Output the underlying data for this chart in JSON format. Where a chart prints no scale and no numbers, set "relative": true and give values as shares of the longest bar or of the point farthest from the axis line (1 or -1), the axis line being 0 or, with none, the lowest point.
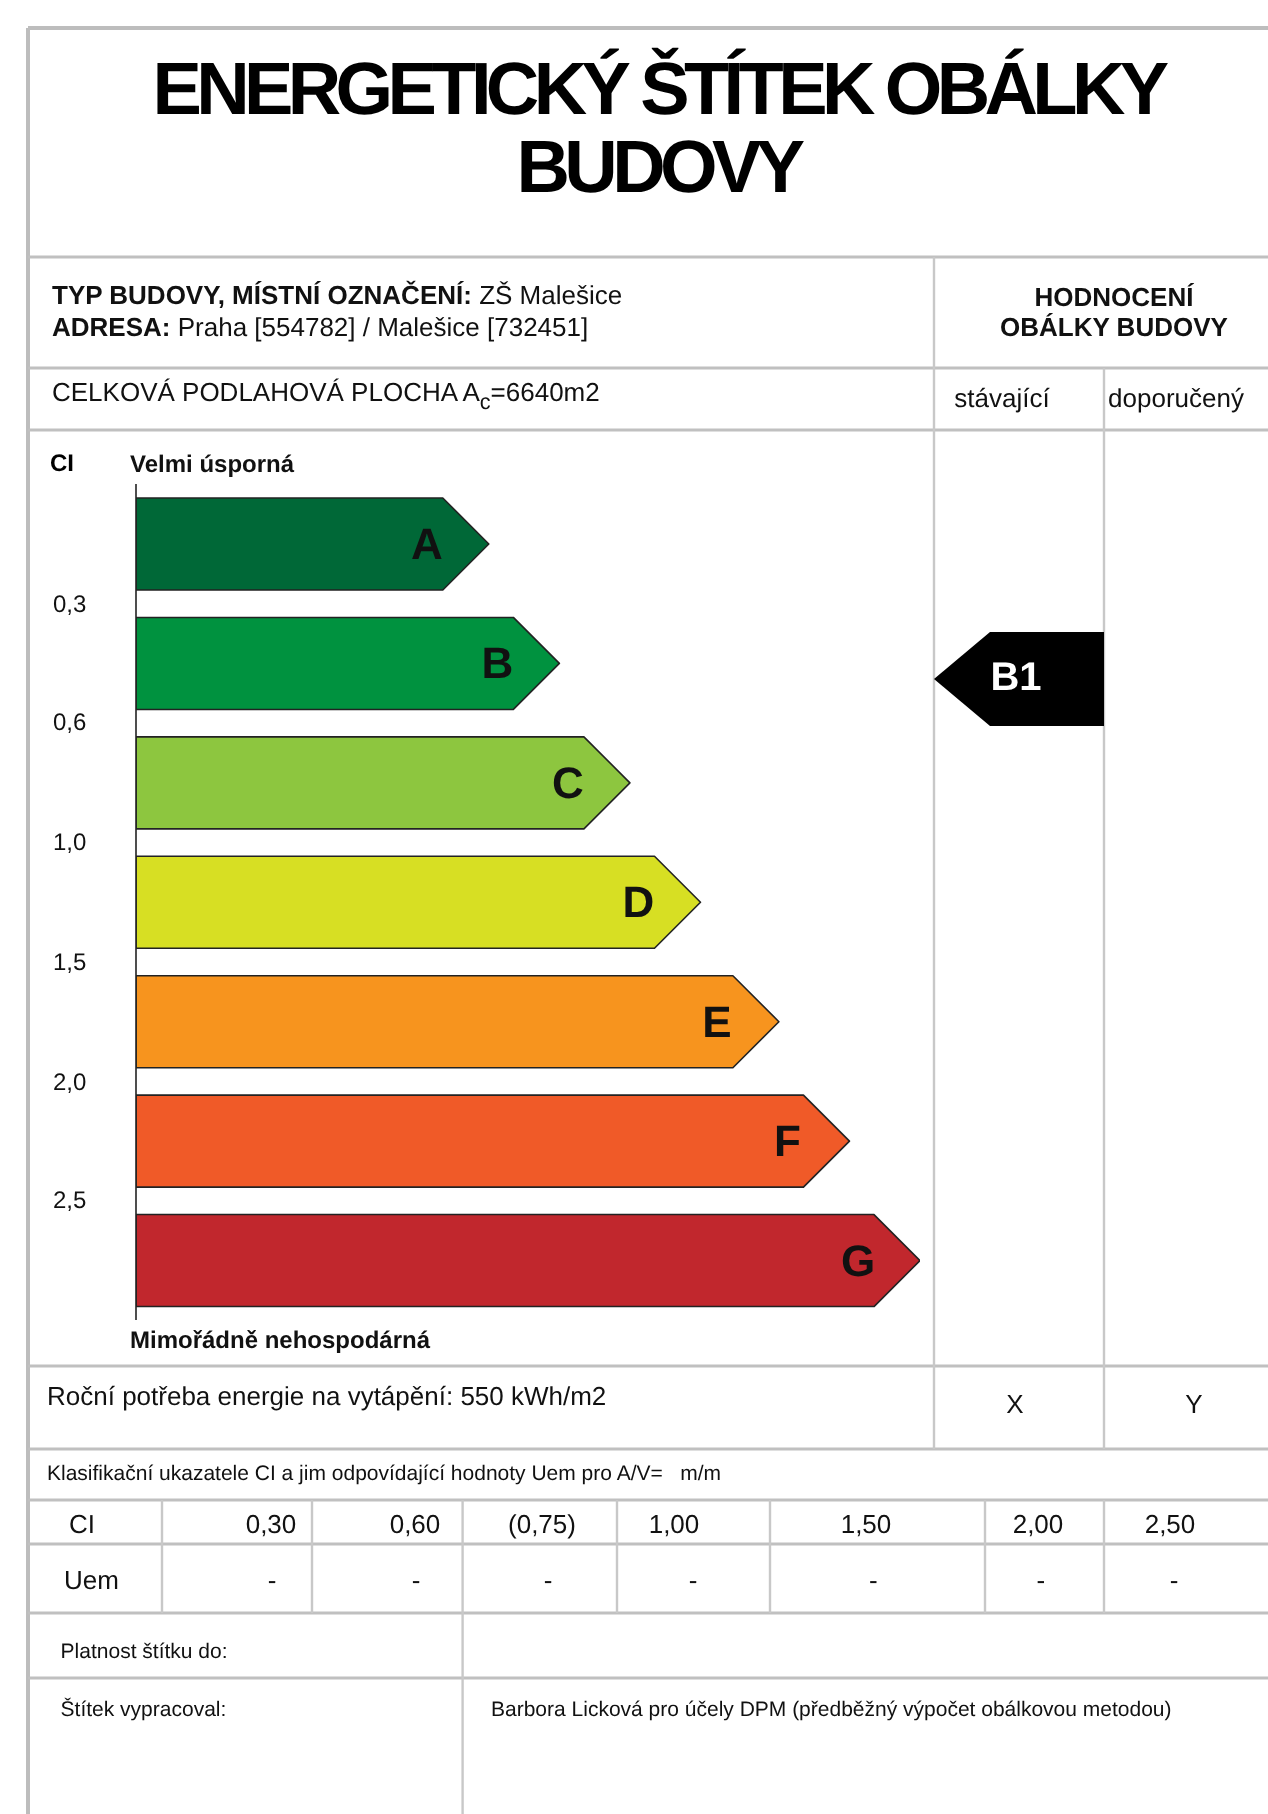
{
  "chart_data": {
    "type": "bar",
    "orientation": "horizontal",
    "relative": true,
    "title": "ENERGETICKÝ ŠTÍTEK OBÁLKY BUDOVY",
    "ylabel": "CI",
    "categories": [
      "A",
      "B",
      "C",
      "D",
      "E",
      "F",
      "G"
    ],
    "values": [
      0.45,
      0.54,
      0.63,
      0.72,
      0.82,
      0.91,
      1
    ],
    "colors": [
      "#006837",
      "#00923f",
      "#8dc63f",
      "#d7df23",
      "#f7941e",
      "#f05a28",
      "#c1272d"
    ],
    "annotations": [
      "TYP BUDOVY, MÍSTNÍ OZNAČENÍ:",
      "ZŠ Malešice",
      "ADRESA:",
      "Praha [554782] / Malešice [732451]",
      "HODNOCENÍ OBÁLKY BUDOVY",
      "CELKOVÁ PODLAHOVÁ PLOCHA A$_{c}$=6640m2",
      "stávající",
      "doporučený",
      "Velmi úsporná",
      "0,3",
      "0,6",
      "1,0",
      "1,5",
      "2,0",
      "2,5",
      "Mimořádně nehospodárná",
      "B1",
      "Roční potřeba energie na vytápění: 550 kWh/m2",
      "X",
      "Y",
      "Klasifikační ukazatele CI a jim odpovídající hodnoty Uem pro A/V=   m/m",
      "CI",
      "0,30",
      "0,60",
      "(0,75)",
      "1,00",
      "1,50",
      "2,00",
      "2,50",
      "Uem",
      "-",
      "-",
      "-",
      "-",
      "-",
      "-",
      "-",
      "Platnost štítku do:",
      "Štítek vypracoval:",
      "Barbora Licková pro účely DPM (předběžný výpočet obálkovou metodou)"
    ]
  }
}
